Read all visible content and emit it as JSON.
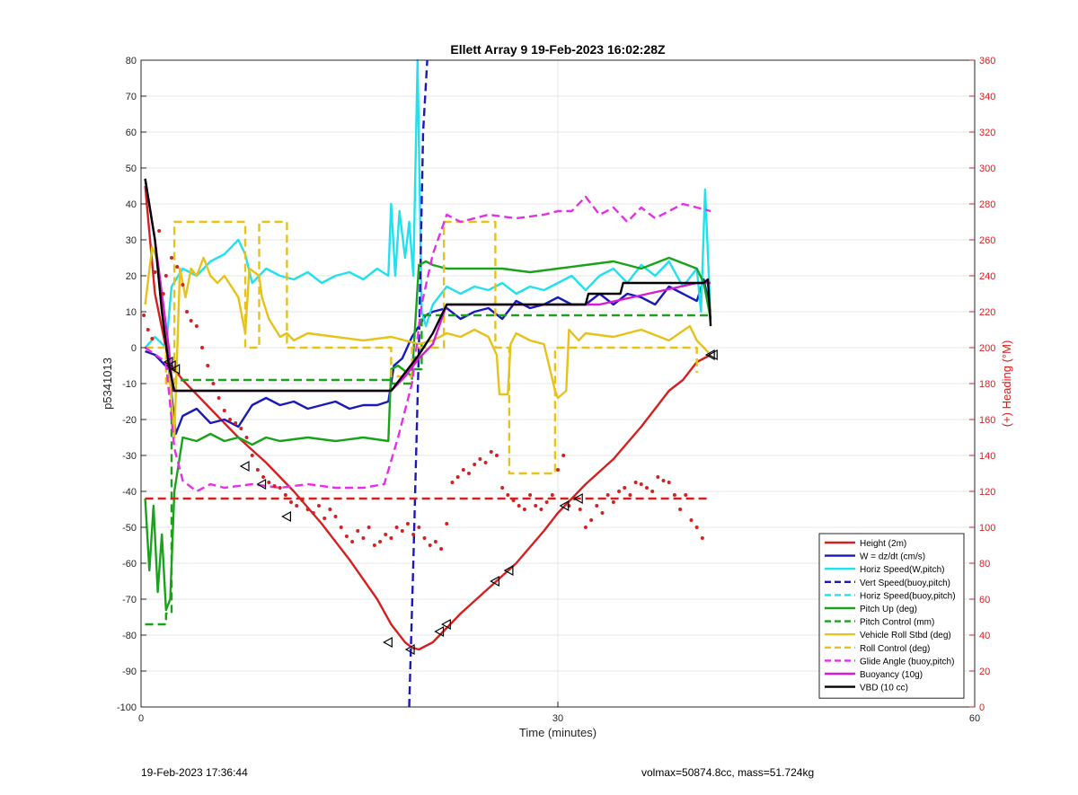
{
  "chart_data": {
    "type": "line",
    "title": "Ellett Array 9 19-Feb-2023 16:02:28Z",
    "xlabel": "Time (minutes)",
    "ylabel": "p5341013",
    "y2label": "(+) Heading (°M)",
    "xlim": [
      0,
      60
    ],
    "ylim": [
      -100,
      80
    ],
    "y2lim": [
      0,
      360
    ],
    "xticks": [
      0,
      30,
      60
    ],
    "yticks": [
      -100,
      -90,
      -80,
      -70,
      -60,
      -50,
      -40,
      -30,
      -20,
      -10,
      0,
      10,
      20,
      30,
      40,
      50,
      60,
      70,
      80
    ],
    "y2ticks": [
      0,
      20,
      40,
      60,
      80,
      100,
      120,
      140,
      160,
      180,
      200,
      220,
      240,
      260,
      280,
      300,
      320,
      340,
      360
    ],
    "grid": true,
    "legend_position": "bottom-right",
    "series": [
      {
        "name": "Height (2m)",
        "color": "#d62020",
        "style": "solid",
        "x": [
          0.3,
          1,
          2,
          3,
          5,
          7,
          9,
          11,
          13,
          15,
          17,
          18,
          19,
          19.5,
          20,
          21,
          22,
          23,
          25,
          27,
          29,
          30,
          32,
          34,
          36,
          37,
          38,
          39,
          40,
          41
        ],
        "y": [
          45,
          15,
          -4,
          -9,
          -17,
          -25,
          -32,
          -40,
          -49,
          -59,
          -70,
          -77,
          -82,
          -83.5,
          -84,
          -82,
          -78,
          -74,
          -67,
          -60,
          -51,
          -46,
          -38,
          -31,
          -22,
          -17,
          -12,
          -9,
          -4,
          -2
        ]
      },
      {
        "name": "W = dz/dt (cm/s)",
        "color": "#1a1ab8",
        "style": "solid",
        "x": [
          0.3,
          1,
          2,
          2.5,
          3,
          4,
          5,
          6,
          7,
          8,
          9,
          10,
          11,
          12,
          13,
          14,
          15,
          16,
          17,
          17.8,
          18.2,
          18.8,
          19.5,
          20,
          20.5,
          21,
          22,
          23,
          24,
          25,
          26,
          27,
          28,
          29,
          30,
          31,
          32,
          33,
          34,
          35,
          36,
          37,
          38,
          39,
          40,
          40.5,
          41
        ],
        "y": [
          -1,
          -2,
          -6,
          -24,
          -19,
          -17,
          -21,
          -20,
          -22,
          -16,
          -14,
          -16,
          -15,
          -17,
          -16,
          -15,
          -17,
          -16,
          -16,
          -15,
          -5,
          -3,
          3,
          6,
          9,
          10,
          11,
          8,
          10,
          11,
          8,
          13,
          11,
          12,
          14,
          12,
          12,
          15,
          12,
          15,
          14,
          12,
          17,
          15,
          13,
          19,
          10
        ]
      },
      {
        "name": "Horiz Speed(W,pitch)",
        "color": "#22e0ee",
        "style": "solid",
        "x": [
          0.3,
          1,
          1.8,
          2.2,
          3,
          4,
          5,
          6,
          7,
          7.5,
          8,
          9,
          10,
          11,
          12,
          13,
          14,
          15,
          16,
          17,
          17.8,
          18,
          18.3,
          18.6,
          19,
          19.3,
          19.6,
          19.9,
          20.2,
          20.5,
          21,
          22,
          23,
          24,
          25,
          26,
          27,
          28,
          29,
          30,
          31,
          32,
          33,
          34,
          35,
          36,
          37,
          38,
          39,
          40,
          40.3,
          40.6,
          41
        ],
        "y": [
          0,
          3,
          0,
          17,
          22,
          20,
          24,
          26,
          30,
          26,
          18,
          22,
          20,
          19,
          21,
          18,
          20,
          21,
          19,
          22,
          20,
          40,
          20,
          38,
          25,
          35,
          20,
          80,
          10,
          6,
          12,
          17,
          15,
          17,
          16,
          18,
          15,
          17,
          16,
          18,
          20,
          16,
          20,
          22,
          18,
          23,
          20,
          24,
          17,
          22,
          10,
          44,
          8
        ]
      },
      {
        "name": "Vert Speed(buoy,pitch)",
        "color": "#1a1ab8",
        "style": "dashed",
        "x": [
          19.3,
          19.6,
          20.0,
          20.3,
          20.6
        ],
        "y": [
          -100,
          -60,
          0,
          60,
          80
        ]
      },
      {
        "name": "Horiz Speed(buoy,pitch)",
        "color": "#22e0ee",
        "style": "dashed",
        "x": [],
        "y": []
      },
      {
        "name": "Pitch Up (deg)",
        "color": "#1aa31a",
        "style": "solid",
        "x": [
          0.3,
          0.6,
          0.9,
          1.2,
          1.5,
          1.8,
          2.1,
          2.4,
          3,
          4,
          5,
          6,
          7,
          8,
          9,
          10,
          12,
          14,
          16,
          17.8,
          18,
          18.5,
          19.5,
          20,
          20.5,
          21,
          22,
          24,
          26,
          28,
          30,
          32,
          34,
          36,
          38,
          40,
          40.5,
          41
        ],
        "y": [
          -42,
          -62,
          -44,
          -68,
          -52,
          -73,
          -70,
          -40,
          -25,
          -26,
          -24,
          -26,
          -25,
          -27,
          -25,
          -26,
          -25,
          -26,
          -25,
          -26,
          -6,
          -5,
          -8,
          23,
          24,
          23,
          22,
          22,
          22,
          21,
          22,
          23,
          24,
          22,
          25,
          22,
          18,
          8
        ]
      },
      {
        "name": "Pitch Control (mm)",
        "color": "#1aa31a",
        "style": "dashed",
        "x": [
          0.3,
          1.8,
          1.8,
          2.2,
          2.2,
          3,
          18,
          18,
          19.5,
          19.5,
          20.2,
          20.2,
          22,
          40,
          41
        ],
        "y": [
          -77,
          -77,
          -74,
          -74,
          -10,
          -9,
          -9,
          -10,
          -10,
          -6,
          -6,
          9,
          9,
          9,
          9
        ]
      },
      {
        "name": "Vehicle Roll Stbd (deg)",
        "color": "#e6c21a",
        "style": "solid",
        "x": [
          0.3,
          0.8,
          1.2,
          1.6,
          2.0,
          2.4,
          2.8,
          3.2,
          3.6,
          4,
          4.5,
          5,
          5.5,
          6,
          7,
          7.5,
          7.8,
          8.5,
          8.7,
          9.2,
          10,
          10.5,
          11,
          12,
          14,
          16,
          18,
          19,
          20,
          21,
          22,
          23,
          24,
          25,
          25.6,
          25.8,
          26.4,
          26.6,
          27,
          28,
          29,
          29.8,
          30,
          30.6,
          30.8,
          31.5,
          32,
          34,
          36,
          38,
          39.5,
          40,
          41
        ],
        "y": [
          12,
          28,
          24,
          10,
          -5,
          -25,
          22,
          14,
          22,
          20,
          25,
          20,
          18,
          20,
          14,
          4,
          22,
          20,
          14,
          8,
          3,
          4,
          2,
          4,
          3,
          2,
          3,
          2,
          1,
          2,
          4,
          3,
          5,
          3,
          -2,
          -13,
          -13,
          1,
          4,
          2,
          1,
          -12,
          -14,
          -12,
          5,
          2,
          4,
          3,
          5,
          2,
          6,
          2,
          -2
        ]
      },
      {
        "name": "Roll Control (deg)",
        "color": "#e6c21a",
        "style": "dashed",
        "x": [
          0.3,
          1.8,
          1.8,
          2.4,
          2.4,
          7.5,
          7.5,
          8.5,
          8.5,
          10.5,
          10.5,
          18,
          18,
          19.5,
          19.5,
          21.8,
          21.8,
          25.5,
          25.5,
          26.5,
          26.5,
          29.8,
          29.8,
          31,
          31,
          40,
          40
        ],
        "y": [
          0,
          0,
          -10,
          -10,
          35,
          35,
          0,
          0,
          35,
          35,
          0,
          0,
          -8,
          -8,
          0,
          0,
          35,
          35,
          0,
          0,
          -35,
          -35,
          0,
          0,
          0,
          0,
          -7
        ]
      },
      {
        "name": "Glide Angle (buoy,pitch)",
        "color": "#e62ee6",
        "style": "dashed",
        "x": [
          0.3,
          1.8,
          2.4,
          3,
          4,
          5,
          6,
          8,
          10,
          12,
          14,
          16,
          17.5,
          18.5,
          19.5,
          20.2,
          21,
          22,
          23,
          25,
          27,
          29,
          30,
          31,
          32,
          33,
          34,
          35,
          36,
          37,
          38,
          39,
          40,
          41
        ],
        "y": [
          0,
          -4,
          -28,
          -37,
          -40,
          -38,
          -39,
          -38,
          -39,
          -38,
          -39,
          -39,
          -38,
          -25,
          -10,
          12,
          26,
          37,
          35,
          37,
          36,
          37,
          38,
          38,
          42,
          37,
          39,
          35,
          39,
          36,
          38,
          40,
          39,
          38
        ]
      },
      {
        "name": "Buoyancy (10g)",
        "color": "#d61ad6",
        "style": "solid",
        "x": [
          0.3,
          1,
          2,
          2.3,
          18,
          19,
          20,
          21,
          22,
          23,
          25,
          28,
          30,
          32,
          33,
          33,
          40,
          41
        ],
        "y": [
          47,
          30,
          0,
          -12,
          -12,
          -8,
          -3,
          1,
          12,
          12,
          12,
          12,
          12,
          12,
          12,
          12,
          18,
          18
        ]
      },
      {
        "name": "VBD (10 cc)",
        "color": "#000000",
        "style": "solid",
        "x": [
          0.3,
          1,
          1.5,
          2,
          2.4,
          18,
          19,
          20,
          21,
          21.5,
          22,
          28,
          32,
          32.2,
          34.5,
          34.7,
          40.5,
          40.8,
          41
        ],
        "y": [
          47,
          30,
          10,
          -5,
          -12,
          -12,
          -7,
          -2,
          4,
          8,
          12,
          12,
          12,
          15,
          15,
          18,
          18,
          19,
          6
        ]
      }
    ],
    "heading": {
      "name": "Heading",
      "color": "#d62020",
      "axis": "right",
      "mean_line": {
        "x": [
          0.3,
          41
        ],
        "y": 116
      },
      "x": [
        0.2,
        0.5,
        0.8,
        1.0,
        1.3,
        1.6,
        1.8,
        2.2,
        2.6,
        3.0,
        3.3,
        3.6,
        4.0,
        4.4,
        4.8,
        5.2,
        5.6,
        6.0,
        6.4,
        6.8,
        7.2,
        7.6,
        8.0,
        8.4,
        8.8,
        9.2,
        9.6,
        10.0,
        10.4,
        10.8,
        11.2,
        11.6,
        12.0,
        12.4,
        12.8,
        13.2,
        13.6,
        14.0,
        14.4,
        14.8,
        15.2,
        15.6,
        16.0,
        16.4,
        16.8,
        17.2,
        17.6,
        18.0,
        18.4,
        18.8,
        19.2,
        19.6,
        20.0,
        20.4,
        20.8,
        21.2,
        21.6,
        22.0,
        22.4,
        22.8,
        23.2,
        23.6,
        24.0,
        24.4,
        24.8,
        25.2,
        25.6,
        26.0,
        26.4,
        26.8,
        27.2,
        27.6,
        28.0,
        28.4,
        28.8,
        29.2,
        29.6,
        30.0,
        30.4,
        30.8,
        31.2,
        31.6,
        32.0,
        32.4,
        32.8,
        33.2,
        33.6,
        34.0,
        34.4,
        34.8,
        35.2,
        35.6,
        36.0,
        36.4,
        36.8,
        37.2,
        37.6,
        38.0,
        38.4,
        38.8,
        39.2,
        39.6,
        40.0,
        40.4
      ],
      "y": [
        218,
        210,
        205,
        242,
        265,
        230,
        240,
        250,
        245,
        235,
        220,
        215,
        212,
        200,
        190,
        180,
        172,
        165,
        160,
        158,
        155,
        150,
        140,
        132,
        128,
        125,
        123,
        122,
        118,
        114,
        112,
        115,
        110,
        108,
        112,
        105,
        110,
        106,
        100,
        95,
        92,
        98,
        94,
        100,
        90,
        92,
        96,
        94,
        100,
        98,
        102,
        96,
        100,
        94,
        90,
        92,
        88,
        102,
        125,
        128,
        132,
        130,
        135,
        138,
        136,
        142,
        140,
        122,
        118,
        115,
        112,
        110,
        118,
        112,
        110,
        114,
        118,
        132,
        140,
        112,
        116,
        110,
        100,
        104,
        112,
        108,
        118,
        114,
        120,
        122,
        118,
        125,
        124,
        122,
        120,
        128,
        126,
        125,
        118,
        110,
        118,
        104,
        100,
        94
      ]
    },
    "markers": {
      "shape": "triangle",
      "x": [
        2.0,
        2.2,
        2.5,
        7.5,
        8.7,
        10.5,
        17.8,
        19.4,
        21.5,
        22.0,
        25.5,
        26.5,
        30.5,
        31.5,
        41.0,
        41.2
      ],
      "y": [
        -4,
        -5,
        -6,
        -33,
        -38,
        -47,
        -82,
        -84,
        -79,
        -77,
        -65,
        -62,
        -44,
        -42,
        -2,
        -2
      ]
    }
  },
  "footer": {
    "left": "19-Feb-2023 17:36:44",
    "right": "volmax=50874.8cc, mass=51.724kg"
  }
}
